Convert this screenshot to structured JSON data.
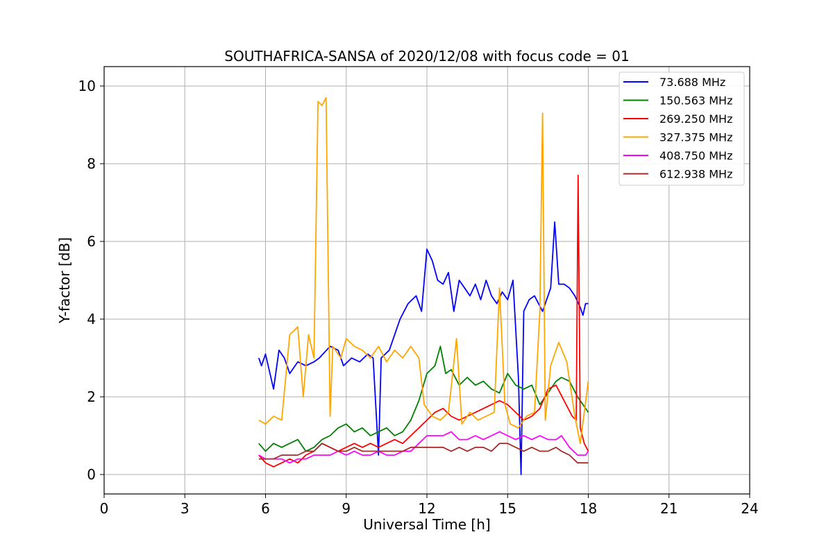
{
  "chart_data": {
    "type": "line",
    "title": "SOUTHAFRICA-SANSA of 2020/12/08 with focus code = 01",
    "xlabel": "Universal Time [h]",
    "ylabel": "Y-factor [dB]",
    "xlim": [
      0,
      24
    ],
    "ylim": [
      -0.5,
      10.5
    ],
    "xticks": [
      0,
      3,
      6,
      9,
      12,
      15,
      18,
      21,
      24
    ],
    "yticks": [
      0,
      2,
      4,
      6,
      8,
      10
    ],
    "grid": true,
    "legend_position": "top-right",
    "series": [
      {
        "name": " 73.688 MHz",
        "color": "#0000ff",
        "points": [
          [
            5.75,
            3.0
          ],
          [
            5.85,
            2.8
          ],
          [
            6.0,
            3.1
          ],
          [
            6.3,
            2.2
          ],
          [
            6.5,
            3.2
          ],
          [
            6.7,
            3.0
          ],
          [
            6.9,
            2.6
          ],
          [
            7.2,
            2.9
          ],
          [
            7.5,
            2.8
          ],
          [
            7.8,
            2.9
          ],
          [
            8.0,
            3.0
          ],
          [
            8.4,
            3.3
          ],
          [
            8.7,
            3.2
          ],
          [
            8.9,
            2.8
          ],
          [
            9.2,
            3.0
          ],
          [
            9.5,
            2.9
          ],
          [
            9.8,
            3.1
          ],
          [
            10.0,
            3.0
          ],
          [
            10.2,
            0.5
          ],
          [
            10.3,
            3.0
          ],
          [
            10.6,
            3.2
          ],
          [
            11.0,
            4.0
          ],
          [
            11.3,
            4.4
          ],
          [
            11.6,
            4.6
          ],
          [
            11.8,
            4.2
          ],
          [
            12.0,
            5.8
          ],
          [
            12.2,
            5.5
          ],
          [
            12.4,
            5.0
          ],
          [
            12.6,
            4.9
          ],
          [
            12.8,
            5.2
          ],
          [
            13.0,
            4.2
          ],
          [
            13.2,
            5.0
          ],
          [
            13.4,
            4.8
          ],
          [
            13.6,
            4.6
          ],
          [
            13.8,
            4.9
          ],
          [
            14.0,
            4.5
          ],
          [
            14.2,
            5.0
          ],
          [
            14.4,
            4.6
          ],
          [
            14.6,
            4.4
          ],
          [
            14.8,
            4.7
          ],
          [
            15.0,
            4.5
          ],
          [
            15.2,
            5.0
          ],
          [
            15.4,
            2.5
          ],
          [
            15.5,
            0.0
          ],
          [
            15.6,
            4.2
          ],
          [
            15.8,
            4.5
          ],
          [
            16.0,
            4.6
          ],
          [
            16.3,
            4.2
          ],
          [
            16.6,
            4.8
          ],
          [
            16.75,
            6.5
          ],
          [
            16.9,
            4.9
          ],
          [
            17.1,
            4.9
          ],
          [
            17.3,
            4.8
          ],
          [
            17.5,
            4.6
          ],
          [
            17.7,
            4.3
          ],
          [
            17.8,
            4.1
          ],
          [
            17.9,
            4.4
          ],
          [
            18.0,
            4.4
          ]
        ]
      },
      {
        "name": "150.563 MHz",
        "color": "#008000",
        "points": [
          [
            5.75,
            0.8
          ],
          [
            6.0,
            0.6
          ],
          [
            6.3,
            0.8
          ],
          [
            6.6,
            0.7
          ],
          [
            6.9,
            0.8
          ],
          [
            7.2,
            0.9
          ],
          [
            7.5,
            0.6
          ],
          [
            7.8,
            0.7
          ],
          [
            8.1,
            0.9
          ],
          [
            8.4,
            1.0
          ],
          [
            8.7,
            1.2
          ],
          [
            9.0,
            1.3
          ],
          [
            9.3,
            1.1
          ],
          [
            9.6,
            1.2
          ],
          [
            9.9,
            1.0
          ],
          [
            10.2,
            1.1
          ],
          [
            10.5,
            1.2
          ],
          [
            10.8,
            1.0
          ],
          [
            11.1,
            1.1
          ],
          [
            11.4,
            1.4
          ],
          [
            11.7,
            1.9
          ],
          [
            12.0,
            2.6
          ],
          [
            12.3,
            2.8
          ],
          [
            12.5,
            3.3
          ],
          [
            12.7,
            2.6
          ],
          [
            12.9,
            2.7
          ],
          [
            13.2,
            2.3
          ],
          [
            13.5,
            2.5
          ],
          [
            13.8,
            2.3
          ],
          [
            14.1,
            2.4
          ],
          [
            14.4,
            2.2
          ],
          [
            14.7,
            2.1
          ],
          [
            15.0,
            2.6
          ],
          [
            15.3,
            2.3
          ],
          [
            15.6,
            2.2
          ],
          [
            15.9,
            2.3
          ],
          [
            16.2,
            1.8
          ],
          [
            16.5,
            2.1
          ],
          [
            16.8,
            2.4
          ],
          [
            17.0,
            2.5
          ],
          [
            17.3,
            2.4
          ],
          [
            17.6,
            2.0
          ],
          [
            17.8,
            1.8
          ],
          [
            18.0,
            1.6
          ]
        ]
      },
      {
        "name": "269.250 MHz",
        "color": "#ff0000",
        "points": [
          [
            5.75,
            0.5
          ],
          [
            6.0,
            0.3
          ],
          [
            6.3,
            0.2
          ],
          [
            6.6,
            0.3
          ],
          [
            6.9,
            0.4
          ],
          [
            7.2,
            0.3
          ],
          [
            7.5,
            0.5
          ],
          [
            7.8,
            0.6
          ],
          [
            8.1,
            0.8
          ],
          [
            8.4,
            0.7
          ],
          [
            8.7,
            0.6
          ],
          [
            9.0,
            0.7
          ],
          [
            9.3,
            0.8
          ],
          [
            9.6,
            0.7
          ],
          [
            9.9,
            0.8
          ],
          [
            10.2,
            0.7
          ],
          [
            10.5,
            0.8
          ],
          [
            10.8,
            0.9
          ],
          [
            11.1,
            0.8
          ],
          [
            11.4,
            1.0
          ],
          [
            11.7,
            1.2
          ],
          [
            12.0,
            1.4
          ],
          [
            12.3,
            1.6
          ],
          [
            12.6,
            1.7
          ],
          [
            12.9,
            1.5
          ],
          [
            13.2,
            1.4
          ],
          [
            13.5,
            1.5
          ],
          [
            13.8,
            1.6
          ],
          [
            14.1,
            1.7
          ],
          [
            14.4,
            1.8
          ],
          [
            14.7,
            1.9
          ],
          [
            15.0,
            1.8
          ],
          [
            15.3,
            1.6
          ],
          [
            15.6,
            1.4
          ],
          [
            15.9,
            1.5
          ],
          [
            16.2,
            1.7
          ],
          [
            16.5,
            2.2
          ],
          [
            16.8,
            2.3
          ],
          [
            17.1,
            1.9
          ],
          [
            17.4,
            1.5
          ],
          [
            17.55,
            1.4
          ],
          [
            17.62,
            7.7
          ],
          [
            17.7,
            1.2
          ],
          [
            17.85,
            0.8
          ],
          [
            18.0,
            0.6
          ]
        ]
      },
      {
        "name": "327.375 MHz",
        "color": "#ffa500",
        "points": [
          [
            5.75,
            1.4
          ],
          [
            6.0,
            1.3
          ],
          [
            6.3,
            1.5
          ],
          [
            6.6,
            1.4
          ],
          [
            6.9,
            3.6
          ],
          [
            7.2,
            3.8
          ],
          [
            7.4,
            2.0
          ],
          [
            7.6,
            3.6
          ],
          [
            7.8,
            3.0
          ],
          [
            7.95,
            9.6
          ],
          [
            8.1,
            9.5
          ],
          [
            8.25,
            9.7
          ],
          [
            8.4,
            1.5
          ],
          [
            8.5,
            3.3
          ],
          [
            8.8,
            3.0
          ],
          [
            9.0,
            3.5
          ],
          [
            9.3,
            3.3
          ],
          [
            9.6,
            3.2
          ],
          [
            9.9,
            3.0
          ],
          [
            10.2,
            3.3
          ],
          [
            10.5,
            2.9
          ],
          [
            10.8,
            3.2
          ],
          [
            11.1,
            3.0
          ],
          [
            11.4,
            3.3
          ],
          [
            11.7,
            3.0
          ],
          [
            11.9,
            1.8
          ],
          [
            12.2,
            1.5
          ],
          [
            12.5,
            1.4
          ],
          [
            12.8,
            1.6
          ],
          [
            13.1,
            3.5
          ],
          [
            13.3,
            1.3
          ],
          [
            13.6,
            1.6
          ],
          [
            13.9,
            1.4
          ],
          [
            14.2,
            1.5
          ],
          [
            14.5,
            1.6
          ],
          [
            14.7,
            4.8
          ],
          [
            14.9,
            1.8
          ],
          [
            15.1,
            1.3
          ],
          [
            15.4,
            1.2
          ],
          [
            15.7,
            1.5
          ],
          [
            16.0,
            1.6
          ],
          [
            16.2,
            4.2
          ],
          [
            16.3,
            9.3
          ],
          [
            16.4,
            1.4
          ],
          [
            16.6,
            2.8
          ],
          [
            16.9,
            3.4
          ],
          [
            17.2,
            2.9
          ],
          [
            17.5,
            1.5
          ],
          [
            17.7,
            0.8
          ],
          [
            17.85,
            1.6
          ],
          [
            18.0,
            2.4
          ]
        ]
      },
      {
        "name": "408.750 MHz",
        "color": "#ff00ff",
        "points": [
          [
            5.75,
            0.5
          ],
          [
            6.0,
            0.4
          ],
          [
            6.3,
            0.4
          ],
          [
            6.6,
            0.4
          ],
          [
            6.9,
            0.3
          ],
          [
            7.2,
            0.4
          ],
          [
            7.5,
            0.4
          ],
          [
            7.8,
            0.5
          ],
          [
            8.1,
            0.5
          ],
          [
            8.4,
            0.5
          ],
          [
            8.7,
            0.6
          ],
          [
            9.0,
            0.5
          ],
          [
            9.3,
            0.6
          ],
          [
            9.6,
            0.5
          ],
          [
            9.9,
            0.5
          ],
          [
            10.2,
            0.6
          ],
          [
            10.5,
            0.5
          ],
          [
            10.8,
            0.5
          ],
          [
            11.1,
            0.6
          ],
          [
            11.4,
            0.6
          ],
          [
            11.7,
            0.8
          ],
          [
            12.0,
            1.0
          ],
          [
            12.3,
            1.0
          ],
          [
            12.6,
            1.0
          ],
          [
            12.9,
            1.1
          ],
          [
            13.2,
            0.9
          ],
          [
            13.5,
            0.9
          ],
          [
            13.8,
            1.0
          ],
          [
            14.1,
            0.9
          ],
          [
            14.4,
            1.0
          ],
          [
            14.7,
            1.1
          ],
          [
            15.0,
            1.0
          ],
          [
            15.3,
            0.9
          ],
          [
            15.6,
            1.0
          ],
          [
            15.9,
            0.9
          ],
          [
            16.2,
            1.0
          ],
          [
            16.5,
            0.9
          ],
          [
            16.8,
            0.9
          ],
          [
            17.0,
            1.0
          ],
          [
            17.3,
            0.7
          ],
          [
            17.6,
            0.5
          ],
          [
            17.9,
            0.5
          ],
          [
            18.0,
            0.6
          ]
        ]
      },
      {
        "name": "612.938 MHz",
        "color": "#a52a2a",
        "points": [
          [
            5.75,
            0.4
          ],
          [
            6.0,
            0.4
          ],
          [
            6.3,
            0.4
          ],
          [
            6.6,
            0.5
          ],
          [
            6.9,
            0.5
          ],
          [
            7.2,
            0.5
          ],
          [
            7.5,
            0.6
          ],
          [
            7.8,
            0.6
          ],
          [
            8.1,
            0.8
          ],
          [
            8.4,
            0.7
          ],
          [
            8.7,
            0.6
          ],
          [
            9.0,
            0.6
          ],
          [
            9.3,
            0.7
          ],
          [
            9.6,
            0.6
          ],
          [
            9.9,
            0.6
          ],
          [
            10.2,
            0.6
          ],
          [
            10.5,
            0.6
          ],
          [
            10.8,
            0.6
          ],
          [
            11.1,
            0.6
          ],
          [
            11.4,
            0.7
          ],
          [
            11.7,
            0.7
          ],
          [
            12.0,
            0.7
          ],
          [
            12.3,
            0.7
          ],
          [
            12.6,
            0.7
          ],
          [
            12.9,
            0.6
          ],
          [
            13.2,
            0.7
          ],
          [
            13.5,
            0.6
          ],
          [
            13.8,
            0.7
          ],
          [
            14.1,
            0.7
          ],
          [
            14.4,
            0.6
          ],
          [
            14.7,
            0.8
          ],
          [
            15.0,
            0.8
          ],
          [
            15.3,
            0.7
          ],
          [
            15.6,
            0.6
          ],
          [
            15.9,
            0.7
          ],
          [
            16.2,
            0.6
          ],
          [
            16.5,
            0.6
          ],
          [
            16.8,
            0.7
          ],
          [
            17.0,
            0.6
          ],
          [
            17.3,
            0.5
          ],
          [
            17.6,
            0.3
          ],
          [
            17.9,
            0.3
          ],
          [
            18.0,
            0.3
          ]
        ]
      }
    ]
  }
}
